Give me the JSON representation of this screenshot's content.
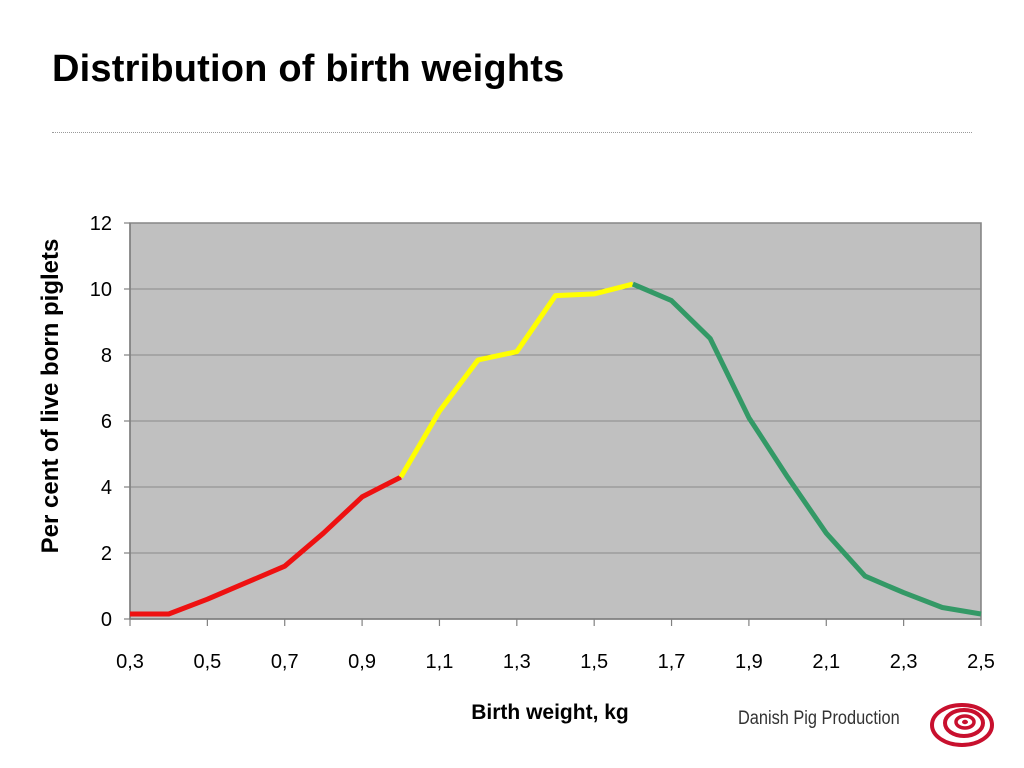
{
  "slide": {
    "title": "Distribution of birth weights",
    "brand_name": "Danish Pig Production",
    "brand_color": "#c8102e"
  },
  "chart_data": {
    "type": "line",
    "title": "",
    "xlabel": "Birth weight, kg",
    "ylabel": "Per cent of live born piglets",
    "xlim": [
      0.3,
      2.5
    ],
    "ylim": [
      0,
      12
    ],
    "x_ticks": [
      "0,3",
      "0,5",
      "0,7",
      "0,9",
      "1,1",
      "1,3",
      "1,5",
      "1,7",
      "1,9",
      "2,1",
      "2,3",
      "2,5"
    ],
    "x_tick_values": [
      0.3,
      0.5,
      0.7,
      0.9,
      1.1,
      1.3,
      1.5,
      1.7,
      1.9,
      2.1,
      2.3,
      2.5
    ],
    "y_ticks": [
      "0",
      "2",
      "4",
      "6",
      "8",
      "10",
      "12"
    ],
    "y_tick_values": [
      0,
      2,
      4,
      6,
      8,
      10,
      12
    ],
    "grid": "horizontal",
    "plot_background": "#c0c0c0",
    "legend": "none",
    "series": [
      {
        "color": "#ee1111",
        "x": [
          0.3,
          0.4,
          0.5,
          0.6,
          0.7,
          0.8,
          0.9,
          1.0
        ],
        "y": [
          0.15,
          0.15,
          0.6,
          1.1,
          1.6,
          2.6,
          3.7,
          4.3
        ]
      },
      {
        "color": "#ffff00",
        "x": [
          1.0,
          1.1,
          1.2,
          1.3,
          1.4,
          1.5,
          1.6
        ],
        "y": [
          4.3,
          6.3,
          7.85,
          8.1,
          9.8,
          9.85,
          10.15
        ]
      },
      {
        "color": "#339966",
        "x": [
          1.6,
          1.7,
          1.8,
          1.9,
          2.0,
          2.1,
          2.2,
          2.3,
          2.4,
          2.5
        ],
        "y": [
          10.15,
          9.65,
          8.5,
          6.1,
          4.3,
          2.6,
          1.3,
          0.8,
          0.35,
          0.15
        ]
      }
    ]
  }
}
